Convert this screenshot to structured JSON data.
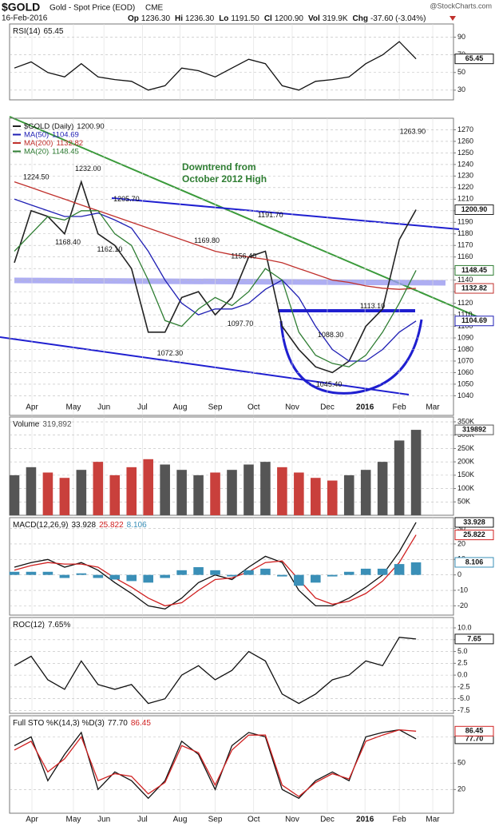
{
  "header": {
    "symbol": "$GOLD",
    "name": "Gold - Spot Price (EOD)",
    "exchange": "CME",
    "date": "16-Feb-2016",
    "watermark": "@StockCharts.com",
    "stats": [
      {
        "label": "Op",
        "value": "1236.30"
      },
      {
        "label": "Hi",
        "value": "1236.30"
      },
      {
        "label": "Lo",
        "value": "1191.50"
      },
      {
        "label": "Cl",
        "value": "1200.90"
      },
      {
        "label": "Vol",
        "value": "319.9K"
      },
      {
        "label": "Chg",
        "value": "-37.60 (-3.04%)"
      }
    ]
  },
  "x_axis": {
    "xlim": [
      0,
      26
    ],
    "xticks": [
      {
        "value": 1.05,
        "label": "Apr"
      },
      {
        "value": 3.53,
        "label": "May"
      },
      {
        "value": 5.35,
        "label": "Jun"
      },
      {
        "value": 7.65,
        "label": "Jul"
      },
      {
        "value": 9.9,
        "label": "Aug"
      },
      {
        "value": 12.0,
        "label": "Sep"
      },
      {
        "value": 14.3,
        "label": "Oct"
      },
      {
        "value": 16.6,
        "label": "Nov"
      },
      {
        "value": 18.7,
        "label": "Dec"
      },
      {
        "value": 20.95,
        "label": "2016"
      },
      {
        "value": 23.0,
        "label": "Feb"
      },
      {
        "value": 25.0,
        "label": "Mar"
      }
    ]
  },
  "chart_data": [
    {
      "type": "line",
      "title": "RSI(14)",
      "legend": "inline",
      "ylim": [
        19,
        105
      ],
      "yticks": [
        30,
        50,
        70,
        90
      ],
      "series": [
        {
          "color": "#111",
          "last_label": "65.45",
          "values": [
            55,
            62,
            50,
            45,
            60,
            45,
            42,
            40,
            30,
            35,
            55,
            52,
            45,
            55,
            65,
            60,
            35,
            30,
            40,
            42,
            45,
            60,
            70,
            85,
            65.45
          ]
        }
      ]
    },
    {
      "type": "line",
      "legend": "list",
      "ylim": [
        1023,
        1280
      ],
      "yticks": [
        1040,
        1050,
        1060,
        1070,
        1080,
        1090,
        1100,
        1110,
        1120,
        1130,
        1140,
        1150,
        1160,
        1170,
        1180,
        1190,
        1200,
        1210,
        1220,
        1230,
        1240,
        1250,
        1260,
        1270
      ],
      "annotation": [
        "Downtrend from",
        "October 2012 High"
      ],
      "price_labels": [
        {
          "x": 1.3,
          "value": 1224.5,
          "label": "1224.50"
        },
        {
          "x": 4.4,
          "value": 1232.0,
          "label": "1232.00"
        },
        {
          "x": 6.7,
          "value": 1205.7,
          "label": "1205.70"
        },
        {
          "x": 3.2,
          "value": 1168.4,
          "label": "1168.40"
        },
        {
          "x": 5.7,
          "value": 1162.1,
          "label": "1162.10"
        },
        {
          "x": 11.5,
          "value": 1169.8,
          "label": "1169.80"
        },
        {
          "x": 13.7,
          "value": 1156.4,
          "label": "1156.40"
        },
        {
          "x": 15.3,
          "value": 1191.7,
          "label": "1191.70"
        },
        {
          "x": 13.5,
          "value": 1097.7,
          "label": "1097.70"
        },
        {
          "x": 9.3,
          "value": 1072.3,
          "label": "1072.30"
        },
        {
          "x": 18.9,
          "value": 1088.3,
          "label": "1088.30"
        },
        {
          "x": 21.4,
          "value": 1113.1,
          "label": "1113.10"
        },
        {
          "x": 18.8,
          "value": 1045.4,
          "label": "1045.40"
        },
        {
          "x": 23.8,
          "value": 1263.9,
          "label": "1263.90"
        }
      ],
      "series": [
        {
          "name": "$GOLD (Daily)",
          "color": "#222",
          "last_label": "1200.90",
          "values": [
            1155,
            1200,
            1195,
            1180,
            1225,
            1180,
            1170,
            1150,
            1095,
            1095,
            1125,
            1130,
            1110,
            1125,
            1160,
            1165,
            1100,
            1080,
            1065,
            1060,
            1070,
            1100,
            1115,
            1175,
            1200.9
          ]
        },
        {
          "name": "MA(50)",
          "color": "#1f1fb4",
          "last_label": "1104.69",
          "values": [
            1210,
            1205,
            1200,
            1195,
            1195,
            1198,
            1192,
            1185,
            1165,
            1140,
            1120,
            1110,
            1115,
            1115,
            1120,
            1132,
            1140,
            1125,
            1100,
            1080,
            1070,
            1070,
            1080,
            1095,
            1104.69
          ]
        },
        {
          "name": "MA(200)",
          "color": "#c0302c",
          "last_label": "1132.82",
          "values": [
            1225,
            1220,
            1215,
            1210,
            1205,
            1200,
            1195,
            1190,
            1185,
            1180,
            1175,
            1170,
            1165,
            1162,
            1160,
            1158,
            1155,
            1150,
            1145,
            1140,
            1138,
            1135,
            1133,
            1132,
            1132.82
          ]
        },
        {
          "name": "MA(20)",
          "color": "#2e7d32",
          "last_label": "1148.45",
          "values": [
            1165,
            1180,
            1195,
            1192,
            1200,
            1200,
            1180,
            1170,
            1140,
            1105,
            1100,
            1115,
            1125,
            1118,
            1130,
            1150,
            1140,
            1095,
            1075,
            1068,
            1065,
            1075,
            1095,
            1120,
            1148.45
          ]
        }
      ]
    },
    {
      "type": "bar",
      "title": "Volume",
      "legend": "inline",
      "ylim": [
        0,
        368000
      ],
      "up_color": "#555555",
      "down_color": "#c9403c",
      "yticks": [
        {
          "value": 50000,
          "label": "50K"
        },
        {
          "value": 100000,
          "label": "100K"
        },
        {
          "value": 150000,
          "label": "150K"
        },
        {
          "value": 200000,
          "label": "200K"
        },
        {
          "value": 250000,
          "label": "250K"
        },
        {
          "value": 300000,
          "label": "300K"
        },
        {
          "value": 350000,
          "label": "350K"
        }
      ],
      "series": [
        {
          "kind": "bar",
          "color": "#555555",
          "last_label": "319,892",
          "tag_label": "319892",
          "values": [
            150000,
            180000,
            160000,
            140000,
            170000,
            200000,
            150000,
            180000,
            210000,
            190000,
            170000,
            150000,
            160000,
            170000,
            190000,
            200000,
            180000,
            160000,
            140000,
            130000,
            150000,
            170000,
            200000,
            280000,
            319892
          ]
        }
      ]
    },
    {
      "type": "line",
      "title": "MACD(12,26,9)",
      "legend": "inline",
      "ylim": [
        -26,
        37
      ],
      "yticks": [
        -20,
        -10,
        0,
        10,
        20,
        30
      ],
      "series": [
        {
          "color": "#111",
          "last_label": "33.928",
          "values": [
            5,
            8,
            10,
            5,
            8,
            3,
            -5,
            -12,
            -20,
            -22,
            -15,
            -5,
            0,
            -3,
            5,
            12,
            8,
            -10,
            -20,
            -20,
            -15,
            -8,
            0,
            15,
            33.928
          ]
        },
        {
          "color": "#d02020",
          "last_label": "25.822",
          "values": [
            3,
            6,
            8,
            7,
            7,
            5,
            -2,
            -8,
            -15,
            -20,
            -18,
            -10,
            -3,
            -2,
            2,
            8,
            9,
            -3,
            -15,
            -19,
            -17,
            -12,
            -4,
            8,
            25.822
          ]
        },
        {
          "kind": "bar",
          "color": "#3a8fb7",
          "last_label": "8.106",
          "values": [
            2,
            2,
            2,
            -2,
            1,
            -2,
            -3,
            -4,
            -5,
            -2,
            3,
            5,
            3,
            -1,
            3,
            4,
            -1,
            -7,
            -5,
            -1,
            2,
            4,
            4,
            7,
            8.106
          ]
        }
      ]
    },
    {
      "type": "line",
      "title": "ROC(12)",
      "legend": "inline",
      "ylim": [
        -8.1,
        12.2
      ],
      "yticks": [
        -7.5,
        {
          "value": -5,
          "label": "-5.0"
        },
        -2.5,
        {
          "value": 0,
          "label": "0.0"
        },
        2.5,
        {
          "value": 5,
          "label": "5.0"
        },
        7.5,
        {
          "value": 10,
          "label": "10.0"
        }
      ],
      "series": [
        {
          "color": "#111",
          "last_label": "7.65",
          "legend_label": "7.65%",
          "values": [
            2,
            4,
            -1,
            -3,
            3,
            -2,
            -3,
            -2,
            -6,
            -5,
            0,
            2,
            -1,
            1,
            5,
            3,
            -4,
            -6,
            -4,
            -1,
            0,
            3,
            2,
            8,
            7.65
          ]
        }
      ]
    },
    {
      "type": "line",
      "title": "Full STO %K(14,3) %D(3)",
      "legend": "inline",
      "ylim": [
        -7,
        104
      ],
      "yticks": [
        20,
        50,
        80
      ],
      "series": [
        {
          "color": "#111",
          "last_label": "77.70",
          "values": [
            70,
            80,
            30,
            60,
            85,
            20,
            40,
            30,
            10,
            30,
            75,
            60,
            20,
            70,
            85,
            80,
            20,
            10,
            30,
            40,
            30,
            80,
            85,
            88,
            77.7
          ]
        },
        {
          "color": "#d02020",
          "last_label": "86.45",
          "values": [
            65,
            75,
            40,
            55,
            80,
            30,
            38,
            35,
            15,
            28,
            70,
            62,
            25,
            65,
            82,
            82,
            25,
            12,
            28,
            38,
            32,
            75,
            82,
            88,
            86.45
          ]
        }
      ]
    }
  ]
}
